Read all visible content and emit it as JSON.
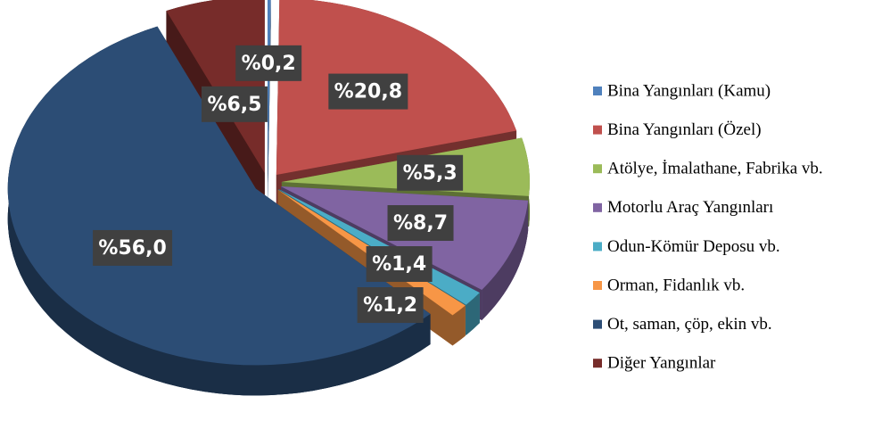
{
  "chart_data": {
    "type": "pie",
    "categories": [
      "Bina Yangınları (Kamu)",
      "Bina Yangınları (Özel)",
      "Atölye, İmalathane, Fabrika vb.",
      "Motorlu Araç Yangınları",
      "Odun-Kömür Deposu vb.",
      "Orman, Fidanlık vb.",
      "Ot, saman, çöp, ekin vb.",
      "Diğer Yangınlar"
    ],
    "values": [
      0.2,
      20.8,
      5.3,
      8.7,
      1.4,
      1.2,
      56.0,
      6.5
    ],
    "value_labels": [
      "%0,2",
      "%20,8",
      "%5,3",
      "%8,7",
      "%1,4",
      "%1,2",
      "%56,0",
      "%6,5"
    ],
    "colors": [
      "#4f81bd",
      "#c0504d",
      "#9bbb59",
      "#8064a2",
      "#4bacc6",
      "#f79646",
      "#2c4d75",
      "#772c2a"
    ],
    "legend": "right"
  }
}
